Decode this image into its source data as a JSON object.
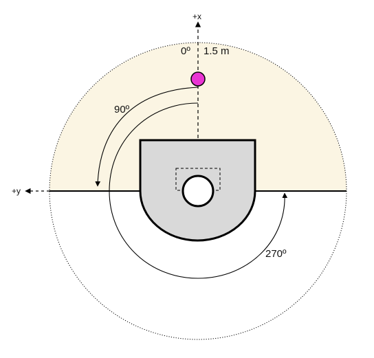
{
  "axes": {
    "x_label": "+x",
    "y_label": "+y"
  },
  "labels": {
    "zero_angle": "0º",
    "distance": "1.5 m",
    "ninety_angle": "90º",
    "two_seventy_angle": "270º"
  },
  "colors": {
    "range_fill": "#fbf5e3",
    "target_marker": "#e935d3",
    "base_fill": "#d9d9d9",
    "line": "#000000"
  }
}
